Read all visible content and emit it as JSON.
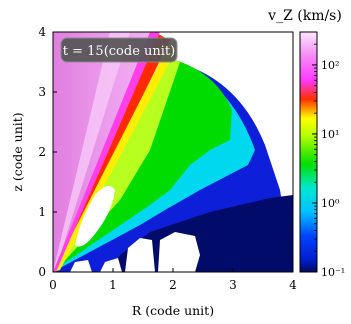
{
  "chart_data": {
    "type": "heatmap",
    "annotation": "t = 15(code unit)",
    "xlabel": "R (code unit)",
    "ylabel": "z (code unit)",
    "xlim": [
      0,
      4
    ],
    "ylim": [
      0,
      4
    ],
    "x_ticks": [
      "0",
      "1",
      "2",
      "3",
      "4"
    ],
    "y_ticks": [
      "0",
      "1",
      "2",
      "3",
      "4"
    ],
    "colorbar": {
      "title": "v_Z (km/s)",
      "scale": "log",
      "range": [
        0.1,
        300
      ],
      "ticks": [
        {
          "value": 0.1,
          "label": "10⁻¹"
        },
        {
          "value": 1,
          "label": "10⁰"
        },
        {
          "value": 10,
          "label": "10¹"
        },
        {
          "value": 100,
          "label": "10²"
        }
      ]
    },
    "colors": {
      "low": "#000b5e",
      "blue": "#0033ff",
      "cyan": "#00e0ff",
      "green": "#00e000",
      "yellow": "#ffff00",
      "red": "#ff0000",
      "magenta": "#ff33ff",
      "high": "#ffe0ff"
    }
  }
}
